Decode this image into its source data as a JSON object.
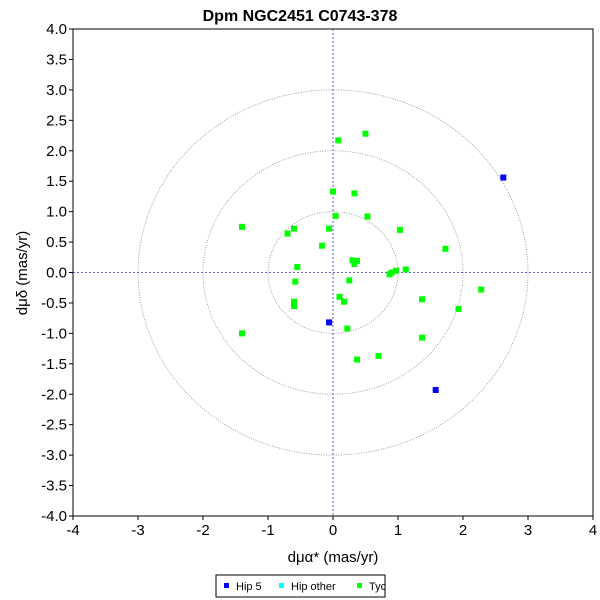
{
  "chart_data": {
    "type": "scatter",
    "title": "Dpm NGC2451  C0743-378",
    "xlabel": "dμα* (mas/yr)",
    "ylabel": "dμδ (mas/yr)",
    "xlim": [
      -4,
      4
    ],
    "ylim": [
      -4,
      4
    ],
    "x_ticks": [
      -4,
      -3,
      -2,
      -1,
      0,
      1,
      2,
      3,
      4
    ],
    "y_ticks": [
      -4.0,
      -3.5,
      -3.0,
      -2.5,
      -2.0,
      -1.5,
      -1.0,
      -0.5,
      0.0,
      0.5,
      1.0,
      1.5,
      2.0,
      2.5,
      3.0,
      3.5,
      4.0
    ],
    "circles": [
      1,
      2,
      3
    ],
    "grid": false,
    "legend_position": "bottom-center",
    "series": [
      {
        "name": "Hip 5",
        "color": "#0000ff",
        "points": [
          [
            2.62,
            1.56
          ],
          [
            1.58,
            -1.93
          ],
          [
            -0.06,
            -0.82
          ]
        ]
      },
      {
        "name": "Hip other",
        "color": "#00ffff",
        "points": []
      },
      {
        "name": "Tyc",
        "color": "#00ff00",
        "points": [
          [
            0.08,
            2.17
          ],
          [
            0.5,
            2.28
          ],
          [
            0.0,
            1.33
          ],
          [
            0.33,
            1.3
          ],
          [
            0.04,
            0.93
          ],
          [
            0.53,
            0.92
          ],
          [
            -1.4,
            0.75
          ],
          [
            -0.6,
            0.72
          ],
          [
            -0.06,
            0.72
          ],
          [
            1.03,
            0.7
          ],
          [
            -0.7,
            0.64
          ],
          [
            -0.17,
            0.44
          ],
          [
            1.73,
            0.39
          ],
          [
            0.3,
            0.2
          ],
          [
            0.37,
            0.19
          ],
          [
            0.33,
            0.14
          ],
          [
            -0.55,
            0.09
          ],
          [
            1.12,
            0.05
          ],
          [
            0.97,
            0.03
          ],
          [
            0.9,
            0.0
          ],
          [
            0.87,
            -0.03
          ],
          [
            0.25,
            -0.13
          ],
          [
            -0.58,
            -0.15
          ],
          [
            2.28,
            -0.28
          ],
          [
            0.1,
            -0.4
          ],
          [
            0.17,
            -0.48
          ],
          [
            1.37,
            -0.44
          ],
          [
            -0.6,
            -0.48
          ],
          [
            -0.6,
            -0.55
          ],
          [
            1.93,
            -0.6
          ],
          [
            0.22,
            -0.92
          ],
          [
            -1.4,
            -1.0
          ],
          [
            1.37,
            -1.07
          ],
          [
            0.7,
            -1.37
          ],
          [
            0.37,
            -1.43
          ]
        ]
      }
    ]
  }
}
